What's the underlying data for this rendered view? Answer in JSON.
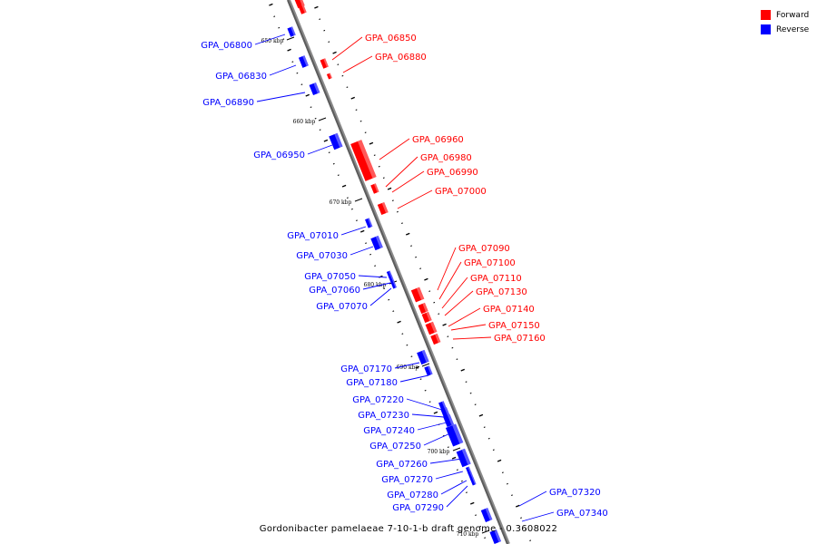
{
  "title": "Gordonibacter pamelaeae 7-10-1-b draft genome - 0.3608022",
  "legend": {
    "forward": {
      "label": "Forward",
      "color": "#ff0000"
    },
    "reverse": {
      "label": "Reverse",
      "color": "#0000ff"
    }
  },
  "ticks": [
    "650 kbp",
    "660 kbp",
    "670 kbp",
    "680 kbp",
    "690 kbp",
    "700 kbp",
    "710 kbp"
  ],
  "forward_genes": [
    "GPA_06850",
    "GPA_06880",
    "GPA_06960",
    "GPA_06980",
    "GPA_06990",
    "GPA_07000",
    "GPA_07090",
    "GPA_07100",
    "GPA_07110",
    "GPA_07130",
    "GPA_07140",
    "GPA_07150",
    "GPA_07160"
  ],
  "reverse_genes": [
    "GPA_06800",
    "GPA_06830",
    "GPA_06890",
    "GPA_06950",
    "GPA_07010",
    "GPA_07030",
    "GPA_07050",
    "GPA_07060",
    "GPA_07070",
    "GPA_07170",
    "GPA_07180",
    "GPA_07220",
    "GPA_07230",
    "GPA_07240",
    "GPA_07250",
    "GPA_07260",
    "GPA_07270",
    "GPA_07280",
    "GPA_07290",
    "GPA_07320",
    "GPA_07340"
  ]
}
